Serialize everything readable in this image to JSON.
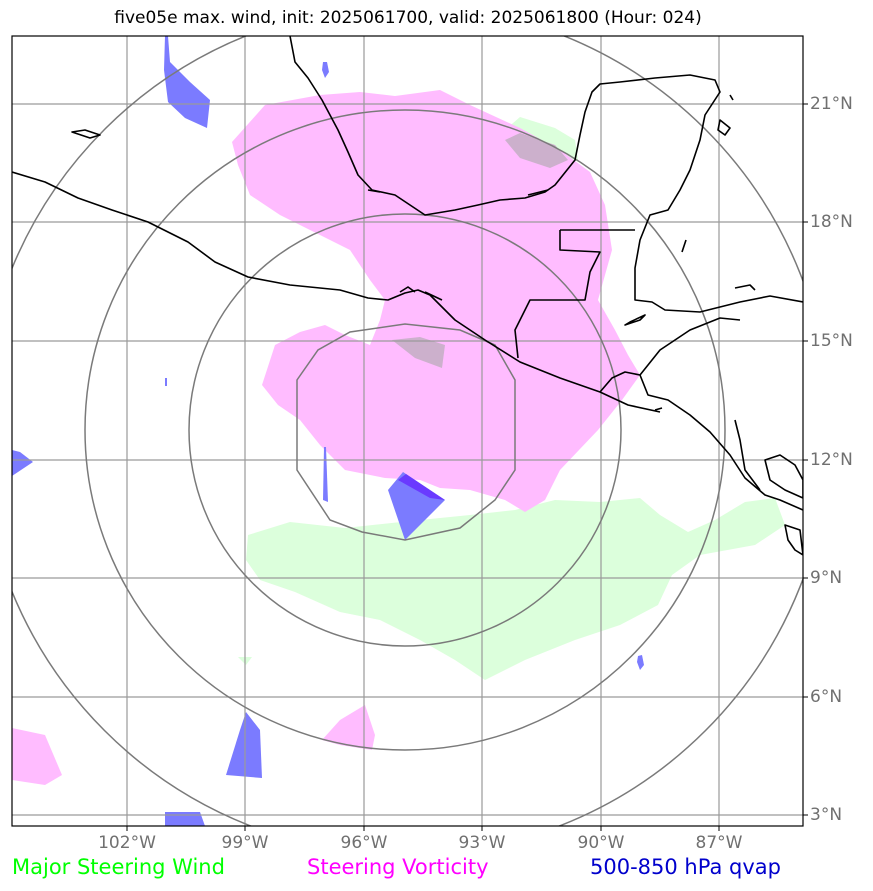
{
  "title": "five05e max. wind, init: 2025061700, valid: 2025061800 (Hour: 024)",
  "lon_labels": [
    "102°W",
    "99°W",
    "96°W",
    "93°W",
    "90°W",
    "87°W"
  ],
  "lat_labels": [
    "21°N",
    "18°N",
    "15°N",
    "12°N",
    "9°N",
    "6°N",
    "3°N"
  ],
  "legend": [
    {
      "label": "Major Steering Wind",
      "color": "#00ff00"
    },
    {
      "label": "Steering Vorticity",
      "color": "#ff00ff"
    },
    {
      "label": "500-850 hPa qvap",
      "color": "#0000cc"
    }
  ],
  "colors": {
    "wind_fill": "#dcffdc",
    "vorticity_fill": "#ffbcff",
    "qvap_fill": "#7b7bff",
    "grid": "#9a9a9a",
    "range_rings": "#7a7a7a",
    "coast": "#000000"
  }
}
